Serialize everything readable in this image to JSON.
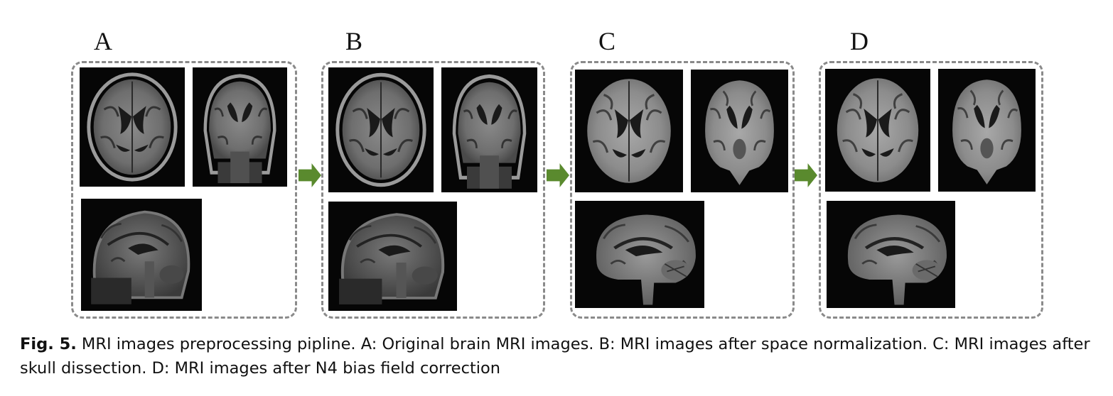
{
  "panels": {
    "a": {
      "letter": "A"
    },
    "b": {
      "letter": "B"
    },
    "c": {
      "letter": "C"
    },
    "d": {
      "letter": "D"
    }
  },
  "caption": {
    "label": "Fig. 5.",
    "text": " MRI images preprocessing pipline. A: Original brain MRI images. B: MRI images after space normalization. C: MRI images after skull dissection. D: MRI images after N4 bias field correction"
  },
  "colors": {
    "arrow": "#5a8a2e",
    "dash": "#8a8a8a"
  },
  "icons": {
    "arrow": "right-arrow-icon"
  }
}
